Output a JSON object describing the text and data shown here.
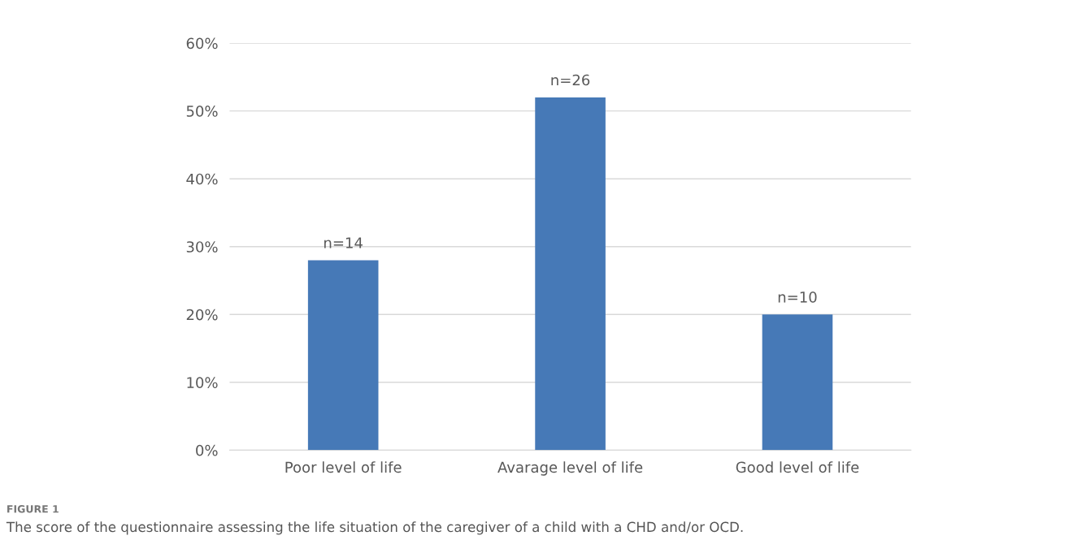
{
  "chart_data": {
    "type": "bar",
    "categories": [
      "Poor level of life",
      "Avarage level of life",
      "Good level of life"
    ],
    "values": [
      28,
      52,
      20
    ],
    "color": "#4679b7",
    "ylim": [
      0,
      60
    ],
    "yticks": [
      {
        "value": 0,
        "label": "0%"
      },
      {
        "value": 10,
        "label": "10%"
      },
      {
        "value": 20,
        "label": "20%"
      },
      {
        "value": 30,
        "label": "30%"
      },
      {
        "value": 40,
        "label": "40%"
      },
      {
        "value": 50,
        "label": "50%"
      },
      {
        "value": 60,
        "label": "60%"
      }
    ],
    "grid": "y",
    "legend": false,
    "annotations": [
      {
        "text": "n=14",
        "x": "Poor level of life",
        "y": 28
      },
      {
        "text": "n=26",
        "x": "Avarage level of life",
        "y": 52
      },
      {
        "text": "n=10",
        "x": "Good level of life",
        "y": 20
      },
      "FIGURE 1",
      "The score of the questionnaire assessing the life situation of the caregiver of a child with a CHD and/or OCD."
    ]
  }
}
